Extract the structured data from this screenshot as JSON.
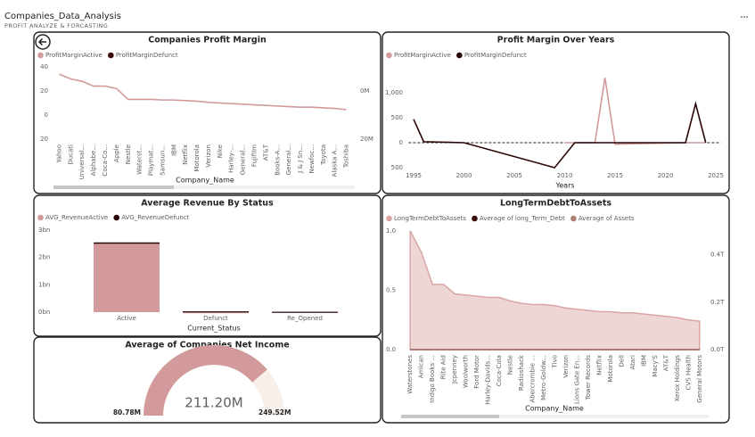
{
  "header": {
    "title": "Companies_Data_Analysis",
    "subtitle": "PROFIT ANALYZE & FORCASTING"
  },
  "chart_data": [
    {
      "type": "line",
      "title": "Companies Profit Margin",
      "x_label": "Company_Name",
      "legend": "top-left",
      "categories": [
        "Yahoo",
        "Ducati",
        "Universal...",
        "Alphabe...",
        "Coca-Co...",
        "Apple",
        "Nestle",
        "Waterst...",
        "Playmat...",
        "Samsun...",
        "IBM",
        "Netflix",
        "Motorola",
        "Verizon",
        "Nike",
        "Harley-...",
        "General...",
        "Fujifilm",
        "AT&T",
        "Books-A...",
        "General...",
        "J & J Sn...",
        "Newfoc...",
        "Toyota",
        "Alaska A...",
        "Toshiba"
      ],
      "series": [
        {
          "name": "ProfitMarginActive",
          "color": "#d29a9a",
          "values": [
            34,
            30,
            28,
            24,
            24,
            22,
            13,
            13,
            13,
            12.5,
            12.5,
            12,
            11.5,
            10.5,
            10,
            9.5,
            9,
            8.5,
            8,
            7.5,
            7,
            6.5,
            6.5,
            6,
            5.5,
            4.5
          ]
        },
        {
          "name": "ProfitMarginDefunct",
          "color": "#3a0808",
          "axis": "y2",
          "values": [
            null,
            null,
            null,
            null,
            null,
            null,
            null,
            null,
            null,
            null,
            null,
            null,
            null,
            null,
            null,
            null,
            null,
            null,
            null,
            null,
            null,
            null,
            null,
            null,
            null,
            null
          ]
        }
      ],
      "ylim": [
        -20,
        40
      ],
      "yticks": [
        40,
        20,
        0,
        {
          "value": -20,
          "label": "20"
        }
      ],
      "y2lim": [
        -20000000,
        10000000
      ],
      "y2ticks": [
        {
          "value": 0,
          "label": "0M"
        },
        {
          "value": -20000000,
          "label": "20M"
        }
      ]
    },
    {
      "type": "line",
      "title": "Profit Margin Over Years",
      "x_label": "Years",
      "legend": "top-left",
      "series": [
        {
          "name": "ProfitMarginActive",
          "color": "#d29a9a",
          "x": [
            2010,
            2013,
            2014,
            2015,
            2022,
            2024
          ],
          "values": [
            0,
            0,
            1300,
            -30,
            0,
            0
          ]
        },
        {
          "name": "ProfitMarginDefunct",
          "color": "#2a0505",
          "x": [
            1995,
            1996,
            2000,
            2009,
            2011,
            2022,
            2023,
            2024
          ],
          "values": [
            470,
            20,
            0,
            -500,
            0,
            0,
            780,
            0
          ]
        }
      ],
      "xlim": [
        1994.5,
        2025.5
      ],
      "xticks": [
        1995,
        2000,
        2005,
        2010,
        2015,
        2020,
        2025
      ],
      "ylim": [
        -550,
        1500
      ],
      "yticks": [
        {
          "value": 1000,
          "label": "1,000"
        },
        500,
        0,
        {
          "value": -500,
          "label": "500"
        }
      ],
      "reference_line": 0
    },
    {
      "type": "bar",
      "title": "Average Revenue By Status",
      "x_label": "Current_Status",
      "legend": "top-left",
      "stacked": true,
      "categories": [
        "Active",
        "Defunct",
        "Re_Opened"
      ],
      "series": [
        {
          "name": "AVG_RevenueActive",
          "color": "#d29a9a",
          "values": [
            2500000000,
            0,
            15000000
          ]
        },
        {
          "name": "AVG_RevenueDefunct",
          "color": "#2a0505",
          "values": [
            50000000,
            30000000,
            0
          ]
        }
      ],
      "ylim": [
        0,
        3000000000
      ],
      "yticks": [
        {
          "value": 0,
          "label": "0bn"
        },
        {
          "value": 1000000000,
          "label": "1bn"
        },
        {
          "value": 2000000000,
          "label": "2bn"
        },
        {
          "value": 3000000000,
          "label": "3bn"
        }
      ]
    },
    {
      "type": "area",
      "title": "LongTermDebtToAssets",
      "x_label": "Company_Name",
      "legend": "top-left",
      "categories": [
        "Waterstones",
        "Amican",
        "Indigo Books ...",
        "Rite Aid",
        "Jcpenney",
        "Woolworth",
        "Ford Motor",
        "Harley-Davids...",
        "Coca-Cola",
        "Nestle",
        "Radioshack",
        "Abercrombie ...",
        "Metro-Goldw...",
        "Tivo",
        "Verizon",
        "Lions Gate En...",
        "Tower Records",
        "Netflix",
        "Motorola",
        "Dell",
        "Atari",
        "IBM",
        "Macy'S",
        "AT&T",
        "Xerox Holdings",
        "CVS Health",
        "General Motors"
      ],
      "series": [
        {
          "name": "LongTermDebtToAssets",
          "color": "#d9a5a5",
          "values": [
            1.0,
            0.82,
            0.55,
            0.55,
            0.47,
            0.46,
            0.45,
            0.44,
            0.44,
            0.41,
            0.39,
            0.38,
            0.38,
            0.37,
            0.35,
            0.34,
            0.33,
            0.32,
            0.32,
            0.31,
            0.31,
            0.3,
            0.29,
            0.28,
            0.27,
            0.25,
            0.24
          ]
        },
        {
          "name": "Average of long_Term_Debt",
          "color": "#3a0808",
          "axis": "y2",
          "values": [
            0,
            0,
            0,
            0,
            0,
            0,
            0,
            0,
            0,
            0,
            0,
            0,
            0,
            0,
            0,
            0,
            0,
            0,
            0,
            0,
            0,
            0,
            0,
            0,
            0,
            0,
            0
          ]
        },
        {
          "name": "Average of Assets",
          "color": "#b08078",
          "axis": "y2",
          "values": [
            0,
            0,
            0,
            0,
            0,
            0,
            0,
            0,
            0,
            0,
            0,
            0,
            0,
            0,
            0,
            0,
            0,
            0,
            0,
            0,
            0,
            0,
            0,
            0,
            0,
            0,
            0
          ]
        }
      ],
      "ylim": [
        0,
        1
      ],
      "yticks": [
        {
          "value": 0,
          "label": "0.0"
        },
        0.5,
        {
          "value": 1,
          "label": "1.0"
        }
      ],
      "y2lim": [
        0,
        500000000000
      ],
      "y2ticks": [
        {
          "value": 0,
          "label": "0.0T"
        },
        {
          "value": 200000000000,
          "label": "0.2T"
        },
        {
          "value": 400000000000,
          "label": "0.4T"
        }
      ]
    },
    {
      "type": "gauge",
      "title": "Average of Companies Net Income",
      "color": "#d29a9a",
      "track_color": "#f7f0ea",
      "value": 211200000,
      "value_label": "211.20M",
      "min": 80780000,
      "min_label": "80.78M",
      "max": 249520000,
      "max_label": "249.52M"
    }
  ]
}
